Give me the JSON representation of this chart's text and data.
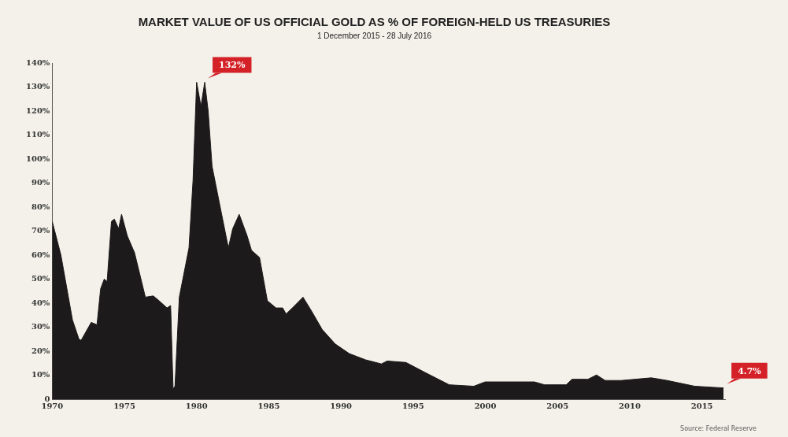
{
  "chart_data": {
    "type": "area",
    "title": "MARKET VALUE OF US OFFICIAL GOLD AS % OF FOREIGN-HELD US TREASURIES",
    "subtitle": "1 December 2015 - 28 July 2016",
    "x": [
      1970.0,
      1970.6,
      1971.4,
      1971.85,
      1972.0,
      1972.7,
      1973.1,
      1973.35,
      1973.6,
      1973.8,
      1974.1,
      1974.3,
      1974.6,
      1974.8,
      1975.2,
      1975.7,
      1976.45,
      1977.0,
      1977.4,
      1977.95,
      1978.2,
      1978.37,
      1978.5,
      1978.8,
      1979.47,
      1979.75,
      1980.0,
      1980.3,
      1980.56,
      1980.8,
      1981.07,
      1981.6,
      1982.2,
      1982.5,
      1982.95,
      1983.5,
      1983.8,
      1984.36,
      1984.9,
      1985.5,
      1985.96,
      1986.2,
      1986.8,
      1987.37,
      1987.93,
      1988.7,
      1989.6,
      1990.57,
      1991.7,
      1992.8,
      1993.2,
      1994.5,
      1995.8,
      1997.5,
      1999.2,
      1999.98,
      2003.4,
      2004.1,
      2005.6,
      2006.0,
      2007.1,
      2007.7,
      2008.3,
      2009.4,
      2011.5,
      2012.6,
      2014.5,
      2016.5
    ],
    "series": [
      {
        "color": "#1c1a1a",
        "values": [
          74,
          60,
          33,
          25,
          24.5,
          32,
          31,
          46,
          50,
          49,
          74,
          75,
          71,
          77,
          68,
          61,
          42.5,
          43,
          41,
          38,
          39,
          4.3,
          5.4,
          42.5,
          63,
          91,
          132,
          122,
          132,
          120,
          97,
          81,
          63,
          71,
          77,
          68,
          62,
          59,
          41,
          38,
          38,
          35.5,
          39,
          42.5,
          37,
          29,
          23,
          19,
          16.4,
          14.7,
          15.9,
          15.3,
          11.2,
          6,
          5.4,
          7.2,
          7.2,
          6,
          6,
          8.3,
          8.3,
          10.1,
          7.8,
          7.8,
          8.9,
          7.8,
          5.4,
          4.7
        ]
      }
    ],
    "xlim": [
      1970,
      2016.6
    ],
    "xticks": [
      1970,
      1975,
      1980,
      1985,
      1990,
      1995,
      2000,
      2005,
      2010,
      2015
    ],
    "ylim": [
      0,
      140
    ],
    "yticks": [
      0,
      {
        "value": 10,
        "label": "10%"
      },
      {
        "value": 20,
        "label": "20%"
      },
      {
        "value": 30,
        "label": "30%"
      },
      {
        "value": 40,
        "label": "40%"
      },
      {
        "value": 50,
        "label": "50%"
      },
      {
        "value": 60,
        "label": "60%"
      },
      {
        "value": 70,
        "label": "70%"
      },
      {
        "value": 80,
        "label": "80%"
      },
      {
        "value": 90,
        "label": "90%"
      },
      {
        "value": 100,
        "label": "100%"
      },
      {
        "value": 110,
        "label": "110%"
      },
      {
        "value": 120,
        "label": "120%"
      },
      {
        "value": 130,
        "label": "130%"
      },
      {
        "value": 140,
        "label": "140%"
      }
    ],
    "annotations": [
      {
        "text": "132%",
        "x": 1980.56,
        "y": 132
      },
      {
        "text": "4.7%",
        "x": 2016.5,
        "y": 4.7
      },
      "Source: Federal Reserve"
    ],
    "grid": false,
    "legend": false
  }
}
